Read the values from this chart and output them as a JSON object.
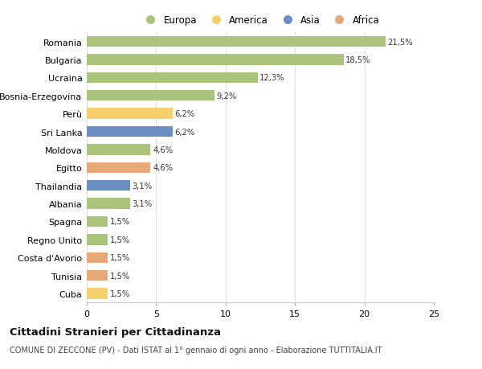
{
  "countries": [
    "Romania",
    "Bulgaria",
    "Ucraina",
    "Bosnia-Erzegovina",
    "Perù",
    "Sri Lanka",
    "Moldova",
    "Egitto",
    "Thailandia",
    "Albania",
    "Spagna",
    "Regno Unito",
    "Costa d'Avorio",
    "Tunisia",
    "Cuba"
  ],
  "values": [
    21.5,
    18.5,
    12.3,
    9.2,
    6.2,
    6.2,
    4.6,
    4.6,
    3.1,
    3.1,
    1.5,
    1.5,
    1.5,
    1.5,
    1.5
  ],
  "continents": [
    "Europa",
    "Europa",
    "Europa",
    "Europa",
    "America",
    "Asia",
    "Europa",
    "Africa",
    "Asia",
    "Europa",
    "Europa",
    "Europa",
    "Africa",
    "Africa",
    "America"
  ],
  "continent_colors": {
    "Europa": "#abc47d",
    "America": "#f5cf6e",
    "Asia": "#6b8fc2",
    "Africa": "#e8a97a"
  },
  "legend_order": [
    "Europa",
    "America",
    "Asia",
    "Africa"
  ],
  "xlim": [
    0,
    25
  ],
  "xticks": [
    0,
    5,
    10,
    15,
    20,
    25
  ],
  "title": "Cittadini Stranieri per Cittadinanza",
  "subtitle": "COMUNE DI ZECCONE (PV) - Dati ISTAT al 1° gennaio di ogni anno - Elaborazione TUTTITALIA.IT",
  "bar_height": 0.6,
  "background_color": "#ffffff",
  "plot_bg_color": "#ffffff",
  "grid_color": "#e0e0e0"
}
